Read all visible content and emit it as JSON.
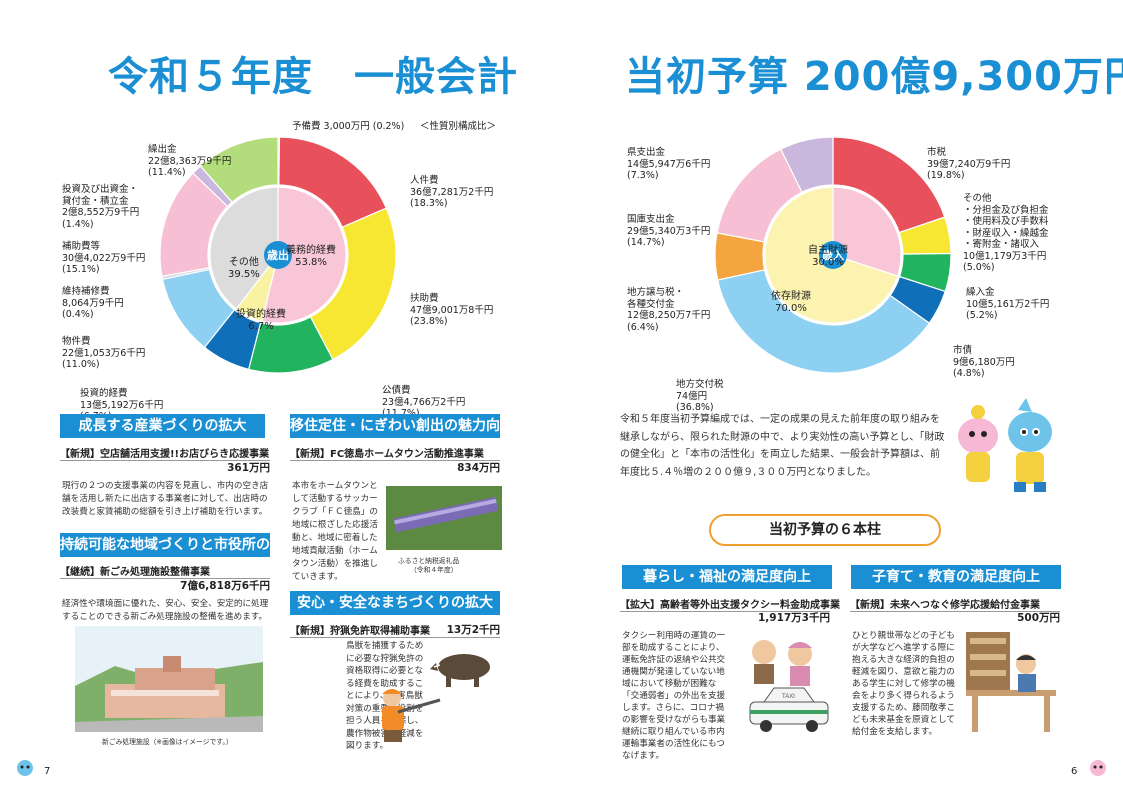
{
  "titles": {
    "left": "令和５年度　一般会計",
    "right": "当初予算 200億9,300万円"
  },
  "chart_data": [
    {
      "type": "pie",
      "title": "歳出",
      "subtitle": "＜性質別構成比＞",
      "unit": "%",
      "slices": [
        {
          "name": "予備費",
          "amount": "3,000万円",
          "value": 0.2,
          "color": "#7ac943"
        },
        {
          "name": "人件費",
          "amount": "36億7,281万2千円",
          "value": 18.3,
          "color": "#e8505b"
        },
        {
          "name": "扶助費",
          "amount": "47億9,001万8千円",
          "value": 23.8,
          "color": "#f7e733"
        },
        {
          "name": "公債費",
          "amount": "23億4,766万2千円",
          "value": 11.7,
          "color": "#21b35e"
        },
        {
          "name": "投資的経費",
          "amount": "13億5,192万6千円",
          "value": 6.7,
          "color": "#0f6fb8"
        },
        {
          "name": "物件費",
          "amount": "22億1,053万6千円",
          "value": 11.0,
          "color": "#8dd0f2"
        },
        {
          "name": "維持補修費",
          "amount": "8,064万9千円",
          "value": 0.4,
          "color": "#cfd8e3"
        },
        {
          "name": "補助費等",
          "amount": "30億4,022万9千円",
          "value": 15.1,
          "color": "#f6bfd4"
        },
        {
          "name": "投資及び出資金・貸付金・積立金",
          "amount": "2億8,552万9千円",
          "value": 1.4,
          "color": "#c9b7dd"
        },
        {
          "name": "繰出金",
          "amount": "22億8,363万9千円",
          "value": 11.4,
          "color": "#b3dd7c"
        }
      ],
      "inner": [
        {
          "name": "義務的経費",
          "value": 53.8,
          "color": "#f8c6d6"
        },
        {
          "name": "投資的経費",
          "value": 6.7,
          "color": "#faf2a3"
        },
        {
          "name": "その他",
          "value": 39.5,
          "color": "#dcdcdc"
        }
      ]
    },
    {
      "type": "pie",
      "title": "歳入",
      "unit": "%",
      "slices": [
        {
          "name": "市税",
          "amount": "39億7,240万9千円",
          "value": 19.8,
          "color": "#e8505b"
        },
        {
          "name": "その他",
          "amount": "10億1,179万3千円",
          "value": 5.0,
          "color": "#f7e733"
        },
        {
          "name": "繰入金",
          "amount": "10億5,161万2千円",
          "value": 5.2,
          "color": "#21b35e"
        },
        {
          "name": "市債",
          "amount": "9億6,180万円",
          "value": 4.8,
          "color": "#0f6fb8"
        },
        {
          "name": "地方交付税",
          "amount": "74億円",
          "value": 36.8,
          "color": "#8dd0f2"
        },
        {
          "name": "地方譲与税・各種交付金",
          "amount": "12億8,250万7千円",
          "value": 6.4,
          "color": "#f4a540"
        },
        {
          "name": "国庫支出金",
          "amount": "29億5,340万3千円",
          "value": 14.7,
          "color": "#f6bfd4"
        },
        {
          "name": "県支出金",
          "amount": "14億5,947万6千円",
          "value": 7.3,
          "color": "#c9b7dd"
        }
      ],
      "inner": [
        {
          "name": "自主財源",
          "value": 30.0,
          "color": "#f8c6d6"
        },
        {
          "name": "依存財源",
          "value": 70.0,
          "color": "#fdf3b0"
        }
      ]
    }
  ],
  "labels_left": {
    "yobi": "予備費 3,000万円 (0.2%)",
    "subtitle": "＜性質別構成比＞",
    "jinken": [
      "人件費",
      "36億7,281万2千円",
      "(18.3%)"
    ],
    "fujo": [
      "扶助費",
      "47億9,001万8千円",
      "(23.8%)"
    ],
    "kosai": [
      "公債費",
      "23億4,766万2千円",
      "(11.7%)"
    ],
    "toshi": [
      "投資的経費",
      "13億5,192万6千円",
      "(6.7%)"
    ],
    "bukken": [
      "物件費",
      "22億1,053万6千円",
      "(11.0%)"
    ],
    "iji": [
      "維持補修費",
      "8,064万9千円",
      "(0.4%)"
    ],
    "hojo": [
      "補助費等",
      "30億4,022万9千円",
      "(15.1%)"
    ],
    "shusshi": [
      "投資及び出資金・",
      "貸付金・積立金",
      "2億8,552万9千円",
      "(1.4%)"
    ],
    "kuride": [
      "繰出金",
      "22億8,363万9千円",
      "(11.4%)"
    ],
    "center": "歳出",
    "inner_gimu": [
      "義務的経費",
      "53.8%"
    ],
    "inner_sonota": [
      "その他",
      "39.5%"
    ],
    "inner_toshi": [
      "投資的経費",
      "6.7%"
    ]
  },
  "labels_right": {
    "shizei": [
      "市税",
      "39億7,240万9千円",
      "(19.8%)"
    ],
    "sonota": [
      "その他",
      "・分担金及び負担金",
      "・使用料及び手数料",
      "・財産収入・繰越金",
      "・寄附金・諸収入",
      "10億1,179万3千円",
      "(5.0%)"
    ],
    "kuriire": [
      "繰入金",
      "10億5,161万2千円",
      "(5.2%)"
    ],
    "shisai": [
      "市債",
      "9億6,180万円",
      "(4.8%)"
    ],
    "kofuzei": [
      "地方交付税",
      "74億円",
      "(36.8%)"
    ],
    "joyo": [
      "地方譲与税・",
      "各種交付金",
      "12億8,250万7千円",
      "(6.4%)"
    ],
    "kokko": [
      "国庫支出金",
      "29億5,340万3千円",
      "(14.7%)"
    ],
    "ken": [
      "県支出金",
      "14億5,947万6千円",
      "(7.3%)"
    ],
    "center": "歳入",
    "inner_jishu": [
      "自主財源",
      "30.0%"
    ],
    "inner_izon": [
      "依存財源",
      "70.0%"
    ]
  },
  "sections": {
    "s1": {
      "head": "成長する産業づくりの拡大",
      "item": "【新規】空店舗活用支援!!お店びらき応援事業",
      "amount": "361万円",
      "body": "現行の２つの支援事業の内容を見直し、市内の空き店舗を活用し新たに出店する事業者に対して、出店時の改装費と家賃補助の総額を引き上げ補助を行います。"
    },
    "s2": {
      "head": "持続可能な地域づくりと市役所の変革",
      "item": "【継続】新ごみ処理施設整備事業",
      "amount": "7億6,818万6千円",
      "body": "経済性や環境面に優れた、安心、安全、安定的に処理することのできる新ごみ処理施設の整備を進めます。",
      "caption": "新ごみ処理施設（※画像はイメージです。）"
    },
    "s3": {
      "head": "移住定住・にぎわい創出の魅力向上",
      "item": "【新規】FC徳島ホームタウン活動推進事業",
      "amount": "834万円",
      "body": "本市をホームタウンとして活動するサッカークラブ「ＦＣ徳島」の地域に根ざした応援活動と、地域に密着した地域貢献活動（ホームタウン活動）を推進していきます。",
      "caption1": "ふるさと納税返礼品",
      "caption2": "（令和４年度）"
    },
    "s4": {
      "head": "安心・安全なまちづくりの拡大",
      "item": "【新規】狩猟免許取得補助事業",
      "amount": "13万2千円",
      "body": "鳥獣を捕獲するために必要な狩猟免許の資格取得に必要となる経費を助成することにより、有害鳥獣対策の重要な役割を担う人員を確保し、農作物被害の軽減を図ります。"
    },
    "s5": {
      "head": "暮らし・福祉の満足度向上",
      "item": "【拡大】高齢者等外出支援タクシー料金助成事業",
      "amount": "1,917万3千円",
      "body": "タクシー利用時の運賃の一部を助成することにより、運転免許証の返納や公共交通機関が発達していない地域において移動が困難な「交通弱者」の外出を支援します。さらに、コロナ禍の影響を受けながらも事業継続に取り組んでいる市内運輸事業者の活性化にもつなげます。",
      "taxi_sign": "TAXI"
    },
    "s6": {
      "head": "子育て・教育の満足度向上",
      "item": "【新規】未来へつなぐ修学応援給付金事業",
      "amount": "500万円",
      "body": "ひとり親世帯などの子どもが大学などへ進学する際に抱える大きな経済的負担の軽減を図り、意欲と能力のある学生に対して修学の機会をより多く得られるよう支援するため、藤岡敬孝こども未来基金を原資として給付金を支給します。"
    }
  },
  "summary": "令和５年度当初予算編成では、一定の成果の見えた前年度の取り組みを継承しながら、限られた財源の中で、より実効性の高い予算とし、「財政の健全化」と「本市の活性化」を両立した結果、一般会計予算額は、前年度比５.４％増の２００億９,３００万円となりました。",
  "pillars_title": "当初予算の６本柱",
  "page_numbers": {
    "left": "7",
    "right": "6"
  },
  "colors": {
    "accent": "#1b8fd4",
    "accent_light": "#9ccbe9",
    "pill_border": "#f0a030"
  },
  "icons": [
    "mascot-icon",
    "boar-icon",
    "hunter-icon",
    "taxi-icon",
    "elderly-icon",
    "student-icon",
    "facility-image",
    "towel-image"
  ]
}
